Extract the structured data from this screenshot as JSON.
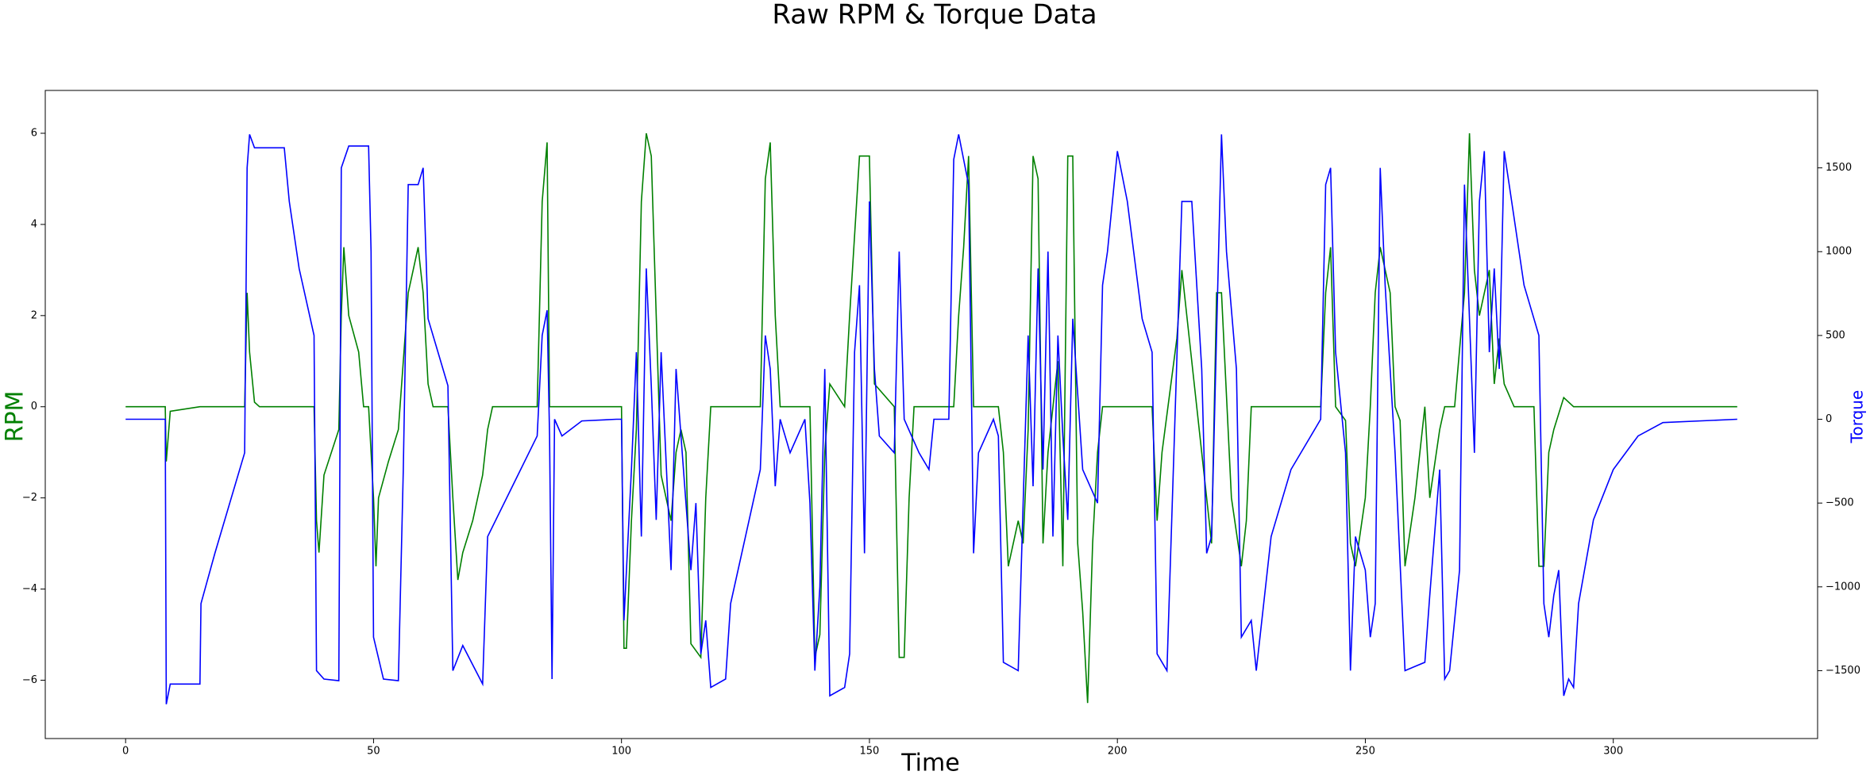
{
  "chart_data": {
    "type": "line",
    "title": "Raw RPM & Torque Data",
    "x_label": "Time",
    "y_label": "RPM",
    "y2_label": "Torque",
    "xlim": [
      -16.2,
      341.2
    ],
    "xticks": [
      0,
      50,
      100,
      150,
      200,
      250,
      300
    ],
    "ylim": [
      -7.28,
      6.94
    ],
    "yticks": [
      {
        "value": -6,
        "label": "−6"
      },
      {
        "value": -4,
        "label": "−4"
      },
      {
        "value": -2,
        "label": "−2"
      },
      0,
      2,
      4,
      6
    ],
    "y2lim": [
      -1905,
      1962
    ],
    "y2ticks": [
      {
        "value": -1500,
        "label": "−1500"
      },
      {
        "value": -1000,
        "label": "−1000"
      },
      {
        "value": -500,
        "label": "−500"
      },
      0,
      500,
      1000,
      1500
    ],
    "series": [
      {
        "color": "#008000",
        "axis": "y",
        "x": [
          0,
          8,
          8.2,
          9,
          15,
          24,
          24.5,
          25,
          26,
          27,
          38,
          38.5,
          39,
          40,
          43,
          43.5,
          44,
          45,
          47,
          48,
          49,
          50,
          50.5,
          51,
          53,
          55,
          56,
          57,
          59,
          60,
          61,
          62,
          65,
          66,
          67,
          68,
          70,
          72,
          73,
          74,
          83,
          84,
          85,
          85.5,
          99,
          100,
          100.5,
          101,
          102,
          103,
          104,
          105,
          106,
          107,
          108,
          110,
          111,
          112,
          113,
          114,
          116,
          117,
          118,
          128,
          129,
          130,
          131,
          132,
          138,
          139,
          140,
          141,
          142,
          145,
          146,
          148,
          150,
          151,
          155,
          156,
          157,
          158,
          159,
          166,
          167,
          168,
          169,
          170,
          171,
          176,
          177,
          178,
          180,
          181,
          182,
          183,
          184,
          185,
          186,
          188,
          189,
          190,
          191,
          192,
          193,
          194,
          195,
          196,
          197,
          207,
          208,
          209,
          212,
          213,
          214,
          216,
          218,
          219,
          220,
          221,
          223,
          225,
          226,
          227,
          241,
          242,
          243,
          244,
          246,
          247,
          248,
          250,
          251,
          252,
          253,
          255,
          256,
          257,
          258,
          260,
          262,
          263,
          265,
          266,
          268,
          270,
          271,
          272,
          273,
          275,
          276,
          277,
          278,
          280,
          284,
          285,
          286,
          287,
          288,
          290,
          292,
          325
        ],
        "values": [
          0,
          0,
          -1.2,
          -0.1,
          0,
          0,
          2.5,
          1.2,
          0.1,
          0,
          0,
          -2.5,
          -3.2,
          -1.5,
          -0.5,
          2,
          3.5,
          2,
          1.2,
          0,
          0,
          -2,
          -3.5,
          -2,
          -1.2,
          -0.5,
          1,
          2.5,
          3.5,
          2.5,
          0.5,
          0,
          0,
          -2,
          -3.8,
          -3.2,
          -2.5,
          -1.5,
          -0.5,
          0,
          0,
          4.5,
          5.8,
          0,
          0,
          0,
          -5.3,
          -5.3,
          -2.5,
          -0.5,
          4.5,
          6,
          5.5,
          2,
          -1.5,
          -2.5,
          -1,
          -0.5,
          -1,
          -5.2,
          -5.5,
          -2,
          0,
          0,
          5,
          5.8,
          2,
          0,
          0,
          -5.5,
          -5,
          -1,
          0.5,
          0,
          2,
          5.5,
          5.5,
          0.5,
          0,
          -5.5,
          -5.5,
          -2,
          0,
          0,
          0,
          2,
          3.5,
          5.5,
          0,
          0,
          -1,
          -3.5,
          -2.5,
          -3,
          -0.5,
          5.5,
          5,
          -3,
          -1,
          1,
          -3.5,
          5.5,
          5.5,
          -3,
          -4.5,
          -6.5,
          -3,
          -1,
          0,
          0,
          -2.5,
          -1,
          1.5,
          3,
          2,
          0,
          -2,
          -3,
          2.5,
          2.5,
          -2,
          -3.5,
          -2.5,
          0,
          0,
          2.5,
          3.5,
          0,
          -0.3,
          -3,
          -3.5,
          -2,
          0,
          2.5,
          3.5,
          2.5,
          0,
          -0.3,
          -3.5,
          -2,
          0,
          -2,
          -0.5,
          0,
          0,
          2.5,
          6,
          3,
          2,
          3,
          0.5,
          1.5,
          0.5,
          0,
          0,
          -3.5,
          -3.5,
          -1,
          -0.5,
          0.2,
          0,
          0
        ]
      },
      {
        "color": "#0000ff",
        "axis": "y2",
        "x": [
          0,
          8,
          8.2,
          9,
          15,
          15.2,
          18,
          22,
          24,
          24.5,
          25,
          26,
          32,
          33,
          35,
          38,
          38.5,
          40,
          43,
          43.5,
          45,
          49,
          49.5,
          50,
          52,
          55,
          56,
          57,
          59,
          60,
          61,
          63,
          65,
          66,
          68,
          72,
          73,
          78,
          83,
          84,
          85,
          85.5,
          86,
          86.5,
          88,
          92,
          99,
          100,
          100.5,
          102,
          103,
          104,
          105,
          106,
          107,
          108,
          110,
          111,
          112,
          114,
          115,
          116,
          117,
          118,
          121,
          122,
          125,
          128,
          129,
          130,
          131,
          132,
          134,
          137,
          138,
          139,
          140,
          141,
          142,
          145,
          146,
          147,
          148,
          149,
          150,
          151,
          152,
          155,
          156,
          157,
          160,
          162,
          163,
          166,
          167,
          168,
          170,
          171,
          172,
          175,
          176,
          177,
          180,
          181,
          182,
          183,
          184,
          185,
          186,
          187,
          188,
          189,
          190,
          191,
          193,
          196,
          197,
          198,
          200,
          202,
          205,
          207,
          208,
          210,
          213,
          215,
          217,
          218,
          219,
          221,
          222,
          224,
          225,
          227,
          228,
          231,
          235,
          240,
          241,
          242,
          243,
          244,
          246,
          247,
          248,
          250,
          251,
          252,
          253,
          254,
          256,
          258,
          262,
          263,
          265,
          266,
          267,
          269,
          270,
          271,
          272,
          273,
          274,
          275,
          276,
          277,
          278,
          279,
          282,
          284,
          285,
          286,
          287,
          288,
          289,
          290,
          291,
          292,
          293,
          296,
          300,
          305,
          310,
          325
        ],
        "values": [
          0,
          0,
          -1700,
          -1580,
          -1580,
          -1100,
          -800,
          -400,
          -200,
          1500,
          1700,
          1620,
          1620,
          1300,
          900,
          500,
          -1500,
          -1550,
          -1560,
          1500,
          1630,
          1630,
          1000,
          -1300,
          -1550,
          -1560,
          -300,
          1400,
          1400,
          1500,
          600,
          400,
          200,
          -1500,
          -1350,
          -1580,
          -700,
          -400,
          -100,
          500,
          650,
          -100,
          -1550,
          0,
          -100,
          -10,
          0,
          0,
          -1200,
          -300,
          400,
          -700,
          900,
          200,
          -600,
          400,
          -900,
          300,
          -100,
          -900,
          -500,
          -1400,
          -1200,
          -1600,
          -1550,
          -1100,
          -700,
          -300,
          500,
          300,
          -400,
          0,
          -200,
          0,
          -500,
          -1500,
          -1000,
          300,
          -1650,
          -1600,
          -1400,
          400,
          800,
          -800,
          1300,
          300,
          -100,
          -200,
          1000,
          0,
          -200,
          -300,
          0,
          0,
          1550,
          1700,
          1400,
          -800,
          -200,
          0,
          -100,
          -1450,
          -1500,
          -500,
          500,
          -400,
          900,
          -300,
          1000,
          -700,
          500,
          -100,
          -600,
          600,
          -300,
          -500,
          800,
          1000,
          1600,
          1300,
          600,
          400,
          -1400,
          -1500,
          1300,
          1300,
          300,
          -800,
          -700,
          1700,
          1000,
          300,
          -1300,
          -1200,
          -1500,
          -700,
          -300,
          -50,
          0,
          1400,
          1500,
          400,
          -200,
          -1500,
          -700,
          -900,
          -1300,
          -1100,
          1500,
          800,
          -200,
          -1500,
          -1450,
          -1050,
          -300,
          -1550,
          -1500,
          -900,
          1400,
          600,
          -200,
          1300,
          1600,
          400,
          900,
          300,
          1600,
          1400,
          800,
          600,
          500,
          -1100,
          -1300,
          -1050,
          -900,
          -1650,
          -1550,
          -1600,
          -1100,
          -600,
          -300,
          -100,
          -20,
          0
        ]
      }
    ]
  }
}
